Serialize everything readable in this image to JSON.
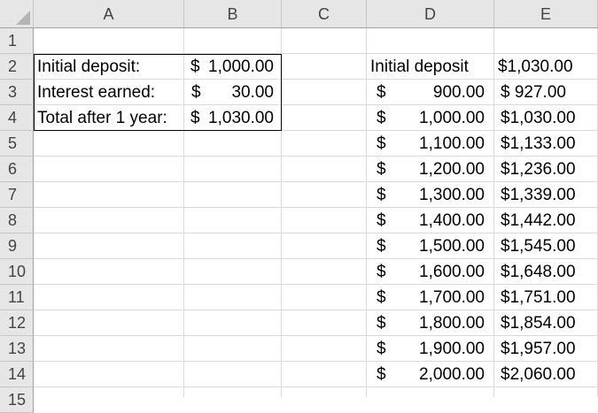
{
  "columns": [
    "A",
    "B",
    "C",
    "D",
    "E"
  ],
  "rows": [
    "1",
    "2",
    "3",
    "4",
    "5",
    "6",
    "7",
    "8",
    "9",
    "10",
    "11",
    "12",
    "13",
    "14",
    "15"
  ],
  "summary": [
    {
      "label": "Initial deposit:",
      "dollar": "$",
      "amount": "1,000.00"
    },
    {
      "label": "Interest earned:",
      "dollar": "$",
      "amount": "30.00"
    },
    {
      "label": "Total after 1 year:",
      "dollar": "$",
      "amount": "1,030.00"
    }
  ],
  "table": {
    "header_label": "Initial deposit",
    "header_value": "$1,030.00",
    "rows": [
      {
        "dollar": "$",
        "deposit": "900.00",
        "total": "$ 927.00"
      },
      {
        "dollar": "$",
        "deposit": "1,000.00",
        "total": "$1,030.00"
      },
      {
        "dollar": "$",
        "deposit": "1,100.00",
        "total": "$1,133.00"
      },
      {
        "dollar": "$",
        "deposit": "1,200.00",
        "total": "$1,236.00"
      },
      {
        "dollar": "$",
        "deposit": "1,300.00",
        "total": "$1,339.00"
      },
      {
        "dollar": "$",
        "deposit": "1,400.00",
        "total": "$1,442.00"
      },
      {
        "dollar": "$",
        "deposit": "1,500.00",
        "total": "$1,545.00"
      },
      {
        "dollar": "$",
        "deposit": "1,600.00",
        "total": "$1,648.00"
      },
      {
        "dollar": "$",
        "deposit": "1,700.00",
        "total": "$1,751.00"
      },
      {
        "dollar": "$",
        "deposit": "1,800.00",
        "total": "$1,854.00"
      },
      {
        "dollar": "$",
        "deposit": "1,900.00",
        "total": "$1,957.00"
      },
      {
        "dollar": "$",
        "deposit": "2,000.00",
        "total": "$2,060.00"
      }
    ]
  }
}
